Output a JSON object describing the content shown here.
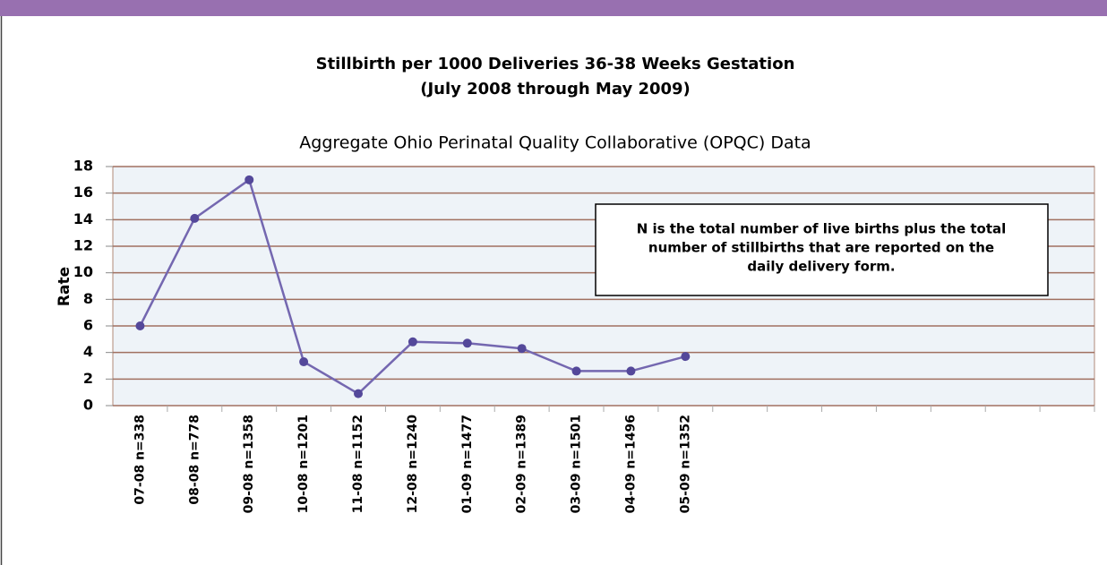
{
  "chart_data": {
    "type": "line",
    "title": [
      "Stillbirth per 1000 Deliveries 36-38 Weeks Gestation",
      "(July 2008 through May 2009)"
    ],
    "subtitle": "Aggregate Ohio Perinatal Quality Collaborative (OPQC) Data",
    "y_label": "Rate",
    "annotation": [
      "N is the total number of live births plus the total",
      "number of stillbirths that are reported on the",
      "daily delivery form."
    ],
    "categories": [
      "07-08 n=338",
      "08-08 n=778",
      "09-08 n=1358",
      "10-08 n=1201",
      "11-08 n=1152",
      "12-08 n=1240",
      "01-09 n=1477",
      "02-09 n=1389",
      "03-09 n=1501",
      "04-09 n=1496",
      "05-09 n=1352",
      null,
      null,
      null,
      null,
      null,
      null,
      null
    ],
    "series": [
      {
        "name": "Rate",
        "color": "#7467b0",
        "values": [
          6,
          14.1,
          17,
          3.3,
          0.9,
          4.8,
          4.7,
          4.3,
          2.6,
          2.6,
          3.7,
          null,
          null,
          null,
          null,
          null,
          null,
          null
        ]
      }
    ],
    "ylim": [
      0,
      18
    ],
    "yticks": [
      0,
      2,
      4,
      6,
      8,
      10,
      12,
      14,
      16,
      18
    ],
    "grid": true
  }
}
